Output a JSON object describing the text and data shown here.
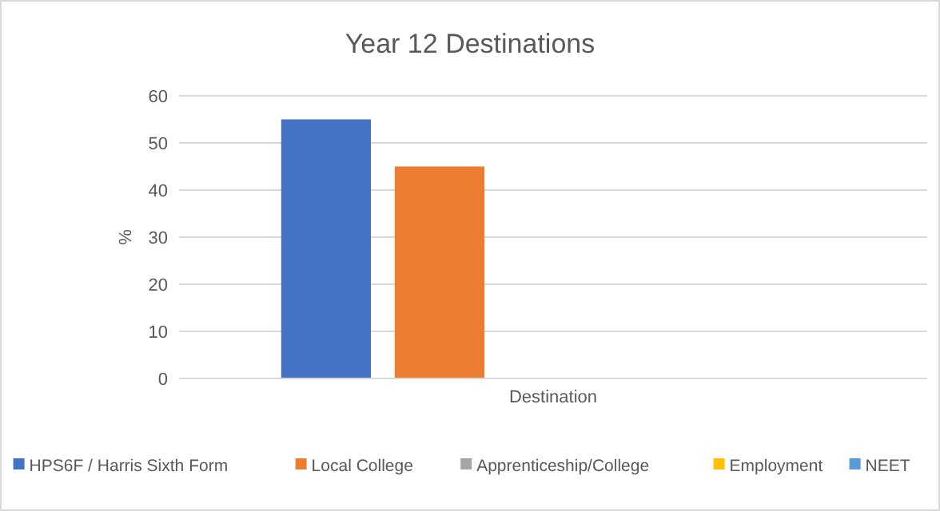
{
  "chart_data": {
    "type": "bar",
    "title": "Year 12 Destinations",
    "xlabel": "Destination",
    "ylabel": "%",
    "categories": [
      null
    ],
    "series": [
      {
        "name": "HPS6F / Harris Sixth Form",
        "color": "#4472c4",
        "values": [
          55
        ]
      },
      {
        "name": "Local College",
        "color": "#ed7d31",
        "values": [
          45
        ]
      },
      {
        "name": "Apprenticeship/College",
        "color": "#a5a5a5",
        "values": [
          0
        ]
      },
      {
        "name": "Employment",
        "color": "#ffc000",
        "values": [
          0
        ]
      },
      {
        "name": "NEET",
        "color": "#5b9bd5",
        "values": [
          0
        ]
      }
    ],
    "ylim": [
      0,
      60
    ],
    "yticks": [
      0,
      10,
      20,
      30,
      40,
      50,
      60
    ],
    "grid": "y",
    "legend": "bottom"
  }
}
